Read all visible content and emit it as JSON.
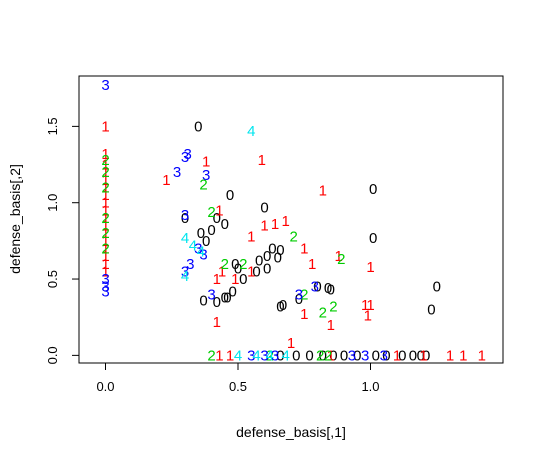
{
  "chart_data": {
    "type": "scatter",
    "xlabel": "defense_basis[,1]",
    "ylabel": "defense_basis[,2]",
    "xlim": [
      -0.1,
      1.5
    ],
    "ylim": [
      -0.05,
      1.83
    ],
    "x_ticks": [
      0.0,
      0.5,
      1.0
    ],
    "x_tick_labels": [
      "0.0",
      "0.5",
      "1.0"
    ],
    "y_ticks": [
      0.0,
      0.5,
      1.0,
      1.5
    ],
    "y_tick_labels": [
      "0.0",
      "0.5",
      "1.0",
      "1.5"
    ],
    "grid": false,
    "legend": "none",
    "marker": "text label of group",
    "series": [
      {
        "label": "0",
        "color": "#000000",
        "points": [
          [
            0.35,
            1.5
          ],
          [
            0.47,
            1.05
          ],
          [
            0.6,
            0.97
          ],
          [
            0.3,
            0.9
          ],
          [
            0.36,
            0.8
          ],
          [
            0.38,
            0.75
          ],
          [
            0.4,
            0.82
          ],
          [
            0.42,
            0.9
          ],
          [
            0.45,
            0.86
          ],
          [
            0.63,
            0.7
          ],
          [
            0.66,
            0.69
          ],
          [
            0.61,
            0.65
          ],
          [
            0.58,
            0.62
          ],
          [
            0.65,
            0.64
          ],
          [
            0.5,
            0.57
          ],
          [
            0.49,
            0.6
          ],
          [
            0.52,
            0.5
          ],
          [
            0.57,
            0.55
          ],
          [
            0.61,
            0.57
          ],
          [
            0.48,
            0.42
          ],
          [
            0.45,
            0.38
          ],
          [
            0.37,
            0.36
          ],
          [
            0.42,
            0.35
          ],
          [
            0.46,
            0.38
          ],
          [
            0.66,
            0.32
          ],
          [
            0.67,
            0.33
          ],
          [
            0.73,
            0.37
          ],
          [
            0.8,
            0.45
          ],
          [
            0.84,
            0.44
          ],
          [
            0.85,
            0.43
          ],
          [
            1.01,
            1.09
          ],
          [
            1.01,
            0.77
          ],
          [
            1.25,
            0.45
          ],
          [
            1.23,
            0.3
          ],
          [
            0.66,
            0.0
          ],
          [
            0.72,
            0.0
          ],
          [
            0.77,
            0.0
          ],
          [
            0.82,
            0.0
          ],
          [
            0.86,
            0.0
          ],
          [
            0.9,
            0.0
          ],
          [
            0.95,
            0.0
          ],
          [
            1.02,
            0.0
          ],
          [
            1.06,
            0.0
          ],
          [
            1.12,
            0.0
          ],
          [
            1.16,
            0.0
          ],
          [
            1.19,
            0.0
          ],
          [
            1.21,
            0.0
          ]
        ]
      },
      {
        "label": "1",
        "color": "#ff0000",
        "points": [
          [
            0.0,
            1.5
          ],
          [
            0.0,
            1.32
          ],
          [
            0.0,
            1.25
          ],
          [
            0.0,
            1.2
          ],
          [
            0.0,
            1.15
          ],
          [
            0.0,
            1.1
          ],
          [
            0.0,
            1.05
          ],
          [
            0.0,
            1.0
          ],
          [
            0.0,
            0.95
          ],
          [
            0.0,
            0.9
          ],
          [
            0.0,
            0.85
          ],
          [
            0.0,
            0.8
          ],
          [
            0.0,
            0.75
          ],
          [
            0.0,
            0.7
          ],
          [
            0.0,
            0.65
          ],
          [
            0.0,
            0.6
          ],
          [
            0.0,
            0.55
          ],
          [
            0.23,
            1.15
          ],
          [
            0.38,
            1.27
          ],
          [
            0.59,
            1.28
          ],
          [
            0.82,
            1.08
          ],
          [
            0.43,
            0.95
          ],
          [
            0.6,
            0.85
          ],
          [
            0.64,
            0.86
          ],
          [
            0.68,
            0.88
          ],
          [
            0.55,
            0.78
          ],
          [
            0.75,
            0.7
          ],
          [
            0.88,
            0.65
          ],
          [
            1.0,
            0.58
          ],
          [
            0.78,
            0.6
          ],
          [
            0.55,
            0.55
          ],
          [
            0.49,
            0.5
          ],
          [
            0.44,
            0.55
          ],
          [
            0.42,
            0.5
          ],
          [
            0.98,
            0.33
          ],
          [
            1.0,
            0.33
          ],
          [
            0.99,
            0.26
          ],
          [
            0.42,
            0.22
          ],
          [
            0.75,
            0.27
          ],
          [
            0.85,
            0.2
          ],
          [
            0.7,
            0.08
          ],
          [
            0.43,
            0.0
          ],
          [
            0.47,
            0.0
          ],
          [
            0.85,
            0.0
          ],
          [
            1.1,
            0.0
          ],
          [
            1.2,
            0.0
          ],
          [
            1.3,
            0.0
          ],
          [
            1.35,
            0.0
          ],
          [
            1.42,
            0.0
          ]
        ]
      },
      {
        "label": "2",
        "color": "#00cc00",
        "points": [
          [
            0.0,
            1.28
          ],
          [
            0.0,
            1.2
          ],
          [
            0.0,
            1.1
          ],
          [
            0.0,
            0.9
          ],
          [
            0.0,
            0.8
          ],
          [
            0.0,
            0.7
          ],
          [
            0.37,
            1.12
          ],
          [
            0.4,
            0.94
          ],
          [
            0.52,
            0.6
          ],
          [
            0.71,
            0.78
          ],
          [
            0.89,
            0.63
          ],
          [
            0.75,
            0.4
          ],
          [
            0.86,
            0.32
          ],
          [
            0.82,
            0.28
          ],
          [
            0.45,
            0.6
          ],
          [
            0.4,
            0.0
          ],
          [
            0.62,
            0.0
          ],
          [
            0.81,
            0.0
          ],
          [
            0.84,
            0.0
          ]
        ]
      },
      {
        "label": "3",
        "color": "#0000ff",
        "points": [
          [
            0.0,
            1.77
          ],
          [
            0.0,
            0.5
          ],
          [
            0.0,
            0.45
          ],
          [
            0.0,
            0.42
          ],
          [
            0.31,
            1.32
          ],
          [
            0.3,
            1.3
          ],
          [
            0.27,
            1.2
          ],
          [
            0.38,
            1.18
          ],
          [
            0.3,
            0.92
          ],
          [
            0.35,
            0.7
          ],
          [
            0.32,
            0.6
          ],
          [
            0.3,
            0.55
          ],
          [
            0.37,
            0.66
          ],
          [
            0.4,
            0.4
          ],
          [
            0.73,
            0.4
          ],
          [
            0.79,
            0.45
          ],
          [
            0.55,
            0.0
          ],
          [
            0.6,
            0.0
          ],
          [
            0.64,
            0.0
          ],
          [
            0.93,
            0.0
          ],
          [
            0.98,
            0.0
          ],
          [
            1.05,
            0.0
          ]
        ]
      },
      {
        "label": "4",
        "color": "#00e5ee",
        "points": [
          [
            0.55,
            1.47
          ],
          [
            0.3,
            0.77
          ],
          [
            0.33,
            0.72
          ],
          [
            0.3,
            0.52
          ],
          [
            0.36,
            0.68
          ],
          [
            0.5,
            0.0
          ],
          [
            0.57,
            0.0
          ],
          [
            0.62,
            0.0
          ],
          [
            0.68,
            0.0
          ]
        ]
      }
    ]
  }
}
